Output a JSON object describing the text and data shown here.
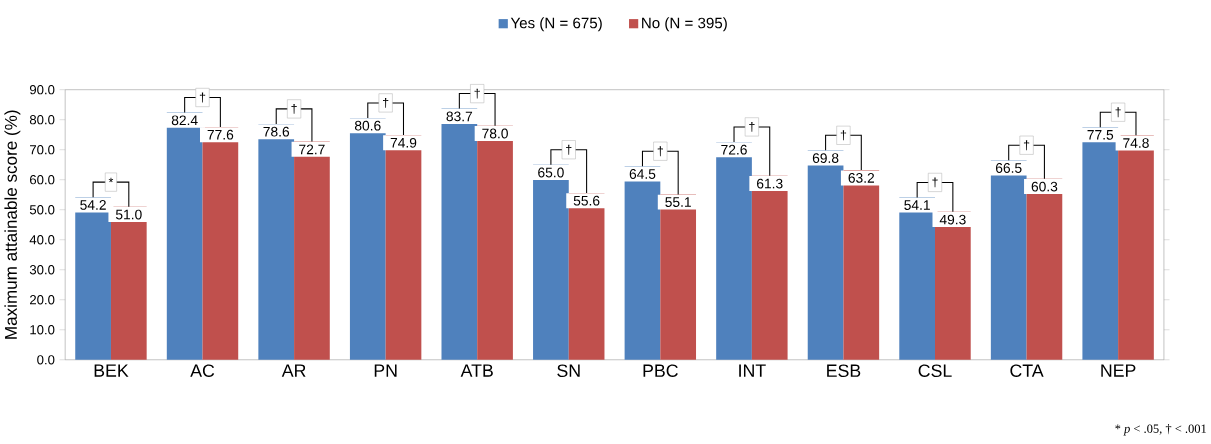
{
  "chart_data": {
    "type": "bar",
    "ylabel": "Maximum attainable score (%)",
    "categories": [
      "BEK",
      "AC",
      "AR",
      "PN",
      "ATB",
      "SN",
      "PBC",
      "INT",
      "ESB",
      "CSL",
      "CTA",
      "NEP"
    ],
    "series": [
      {
        "name": "Yes (N = 675)",
        "color": "#4f81bd",
        "values": [
          54.2,
          82.4,
          78.6,
          80.6,
          83.7,
          65.0,
          64.5,
          72.6,
          69.8,
          54.1,
          66.5,
          77.5
        ],
        "value_labels": [
          "54.2",
          "82.4",
          "78.6",
          "80.6",
          "83.7",
          "65.0",
          "64.5",
          "72.6",
          "69.8",
          "54.1",
          "66.5",
          "77.5"
        ]
      },
      {
        "name": "No    (N = 395)",
        "color": "#c0504d",
        "values": [
          51.0,
          77.6,
          72.7,
          74.9,
          78.0,
          55.6,
          55.1,
          61.3,
          63.2,
          49.3,
          60.3,
          74.8
        ],
        "value_labels": [
          "51.0",
          "77.6",
          "72.7",
          "74.9",
          "78.0",
          "55.6",
          "55.1",
          "61.3",
          "63.2",
          "49.3",
          "60.3",
          "74.8"
        ]
      }
    ],
    "ylim": [
      0,
      90
    ],
    "yticks": [
      {
        "value": 0,
        "label": "0.0"
      },
      {
        "value": 10,
        "label": "10.0"
      },
      {
        "value": 20,
        "label": "20.0"
      },
      {
        "value": 30,
        "label": "30.0"
      },
      {
        "value": 40,
        "label": "40.0"
      },
      {
        "value": 50,
        "label": "50.0"
      },
      {
        "value": 60,
        "label": "60.0"
      },
      {
        "value": 70,
        "label": "70.0"
      },
      {
        "value": 80,
        "label": "80.0"
      },
      {
        "value": 90,
        "label": "90.0"
      }
    ],
    "legend": "top",
    "annotations": [
      "*",
      "†",
      "†",
      "†",
      "†",
      "†",
      "†",
      "†",
      "†",
      "†",
      "†",
      "†",
      "* *p* < .05,  † < .001"
    ]
  }
}
